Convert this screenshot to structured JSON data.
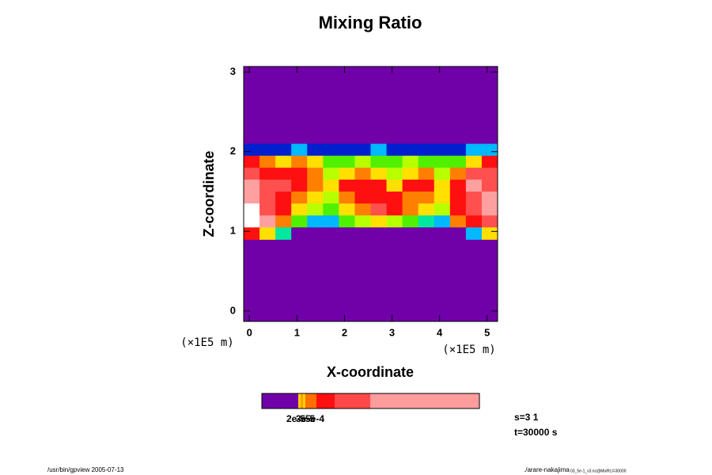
{
  "chart_data": {
    "type": "heatmap",
    "title": "Mixing Ratio",
    "x_label": "X-coordinate",
    "y_label": "Z-coordinate",
    "x_unit": "(×1E5 m)",
    "y_unit": "(×1E5 m)",
    "xlim": [
      -0.12,
      5.22
    ],
    "ylim": [
      -0.13,
      3.07
    ],
    "xticks": [
      0,
      1,
      2,
      3,
      4,
      5
    ],
    "yticks": [
      0,
      1,
      2,
      3
    ],
    "field_xlim": [
      -0.12,
      5.22
    ],
    "field_zlim": [
      0.9,
      2.1
    ],
    "level_colors": [
      "#7000a8",
      "#0020d0",
      "#00b8ff",
      "#00e8a0",
      "#50f000",
      "#b8ff00",
      "#ffe000",
      "#ff8000",
      "#ff1010",
      "#ff5050",
      "#ffa0a0",
      "#ffffff"
    ],
    "field_levels": [
      [
        1,
        1,
        1,
        2,
        1,
        1,
        1,
        1,
        2,
        1,
        1,
        1,
        1,
        1,
        2,
        2
      ],
      [
        8,
        7,
        6,
        7,
        6,
        4,
        4,
        5,
        4,
        4,
        5,
        4,
        4,
        4,
        6,
        8
      ],
      [
        9,
        8,
        8,
        8,
        7,
        5,
        6,
        7,
        6,
        5,
        6,
        7,
        5,
        7,
        9,
        9
      ],
      [
        10,
        9,
        9,
        8,
        7,
        6,
        8,
        8,
        8,
        6,
        8,
        8,
        6,
        8,
        10,
        9
      ],
      [
        10,
        9,
        8,
        7,
        6,
        5,
        7,
        8,
        8,
        8,
        7,
        7,
        6,
        8,
        9,
        10
      ],
      [
        11,
        9,
        8,
        6,
        5,
        4,
        6,
        7,
        9,
        8,
        7,
        6,
        5,
        8,
        9,
        10
      ],
      [
        11,
        10,
        7,
        4,
        2,
        2,
        4,
        5,
        6,
        5,
        4,
        3,
        2,
        7,
        8,
        9
      ],
      [
        8,
        6,
        3,
        0,
        0,
        0,
        0,
        0,
        0,
        0,
        0,
        0,
        0,
        0,
        2,
        6
      ]
    ],
    "colorbar_colors": [
      "#7000a8",
      "#ffd000",
      "#ffa000",
      "#ffd000",
      "#ff7000",
      "#ff1010",
      "#ff4848",
      "#ff9c9c"
    ],
    "colorbar_labels": [
      "2e-5",
      "3e-5",
      "5e-4"
    ],
    "info": [
      "s=3 1",
      "t=30000 s"
    ],
    "footer_left": "/usr/bin/gpview 2005-07-13",
    "footer_right": "./arare-nakajima",
    "footer_right_small": "03_5e-1_v3.nc@MixRt,t=30000"
  }
}
